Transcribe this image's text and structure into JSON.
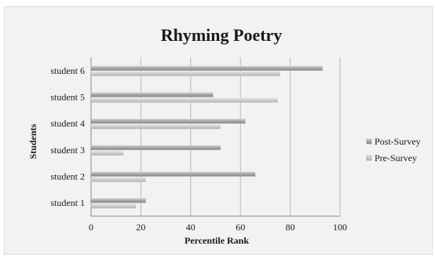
{
  "chart_data": {
    "type": "bar",
    "orientation": "horizontal",
    "title": "Rhyming Poetry",
    "xlabel": "Percentile Rank",
    "ylabel": "Students",
    "categories": [
      "student 1",
      "student 2",
      "student 3",
      "student 4",
      "student 5",
      "student 6"
    ],
    "series": [
      {
        "name": "Post-Survey",
        "values": [
          22,
          66,
          52,
          62,
          49,
          93
        ]
      },
      {
        "name": "Pre-Survey",
        "values": [
          18,
          22,
          13,
          52,
          75,
          76
        ]
      }
    ],
    "xlim": [
      0,
      100
    ],
    "xticks": [
      "0",
      "20",
      "40",
      "60",
      "80",
      "100"
    ],
    "grid": "vertical",
    "legend_position": "right",
    "colors": {
      "post_survey": "#9a9a9a",
      "pre_survey": "#c4c4c4",
      "background": "#f2f2f2",
      "grid": "#b8b8b8"
    }
  }
}
